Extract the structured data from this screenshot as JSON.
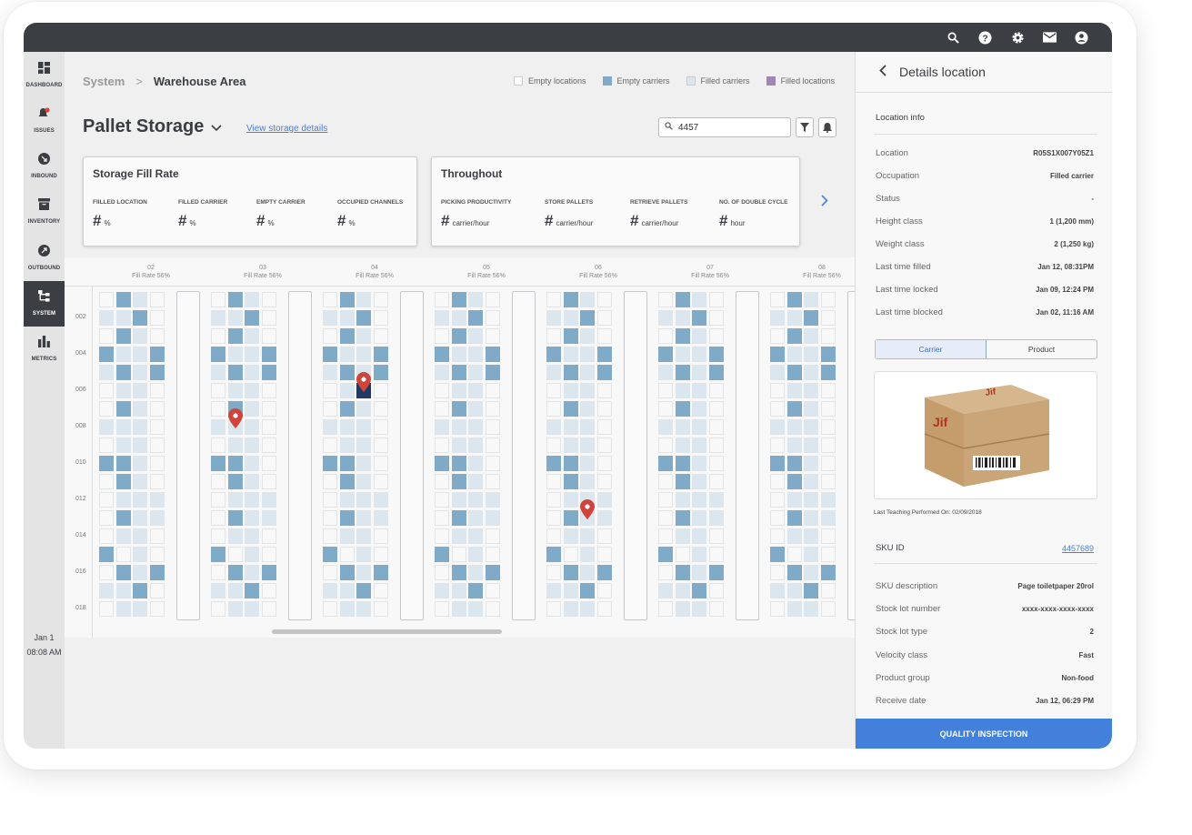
{
  "topbar": {
    "icons": [
      "search-icon",
      "help-icon",
      "gear-icon",
      "mail-icon",
      "account-icon"
    ]
  },
  "sidebar": {
    "items": [
      {
        "label": "DASHBOARD",
        "icon": "dashboard-icon"
      },
      {
        "label": "ISSUES",
        "icon": "bell-alert-icon"
      },
      {
        "label": "INBOUND",
        "icon": "inbound-arrow-icon"
      },
      {
        "label": "INVENTORY",
        "icon": "archive-icon"
      },
      {
        "label": "OUTBOUND",
        "icon": "outbound-arrow-icon"
      },
      {
        "label": "SYSTEM",
        "icon": "hierarchy-icon",
        "active": true
      },
      {
        "label": "METRICS",
        "icon": "bar-chart-icon"
      }
    ],
    "date": "Jan 1",
    "time": "08:08 AM"
  },
  "breadcrumb": {
    "parent": "System",
    "current": "Warehouse Area"
  },
  "legend": [
    {
      "label": "Empty locations",
      "color": "#ffffff"
    },
    {
      "label": "Empty carriers",
      "color": "#7faac8"
    },
    {
      "label": "Filled carriers",
      "color": "#dce6ef"
    },
    {
      "label": "Filled locations",
      "color": "#a086b4"
    }
  ],
  "page": {
    "title": "Pallet Storage",
    "view_link": "View storage details"
  },
  "search": {
    "value": "4457",
    "placeholder": ""
  },
  "fill_card": {
    "title": "Storage Fill Rate",
    "metrics": [
      {
        "label": "FIILLED LOCATION",
        "value": "#",
        "unit": "%"
      },
      {
        "label": "FILLED CARRIER",
        "value": "#",
        "unit": "%"
      },
      {
        "label": "EMPTY CARRIER",
        "value": "#",
        "unit": "%"
      },
      {
        "label": "OCCUPIED CHANNELS",
        "value": "#",
        "unit": "%"
      }
    ]
  },
  "throughput_card": {
    "title": "Throughout",
    "metrics": [
      {
        "label": "PICKING PRODUCTIVITY",
        "value": "#",
        "unit": "carrier/hour"
      },
      {
        "label": "STORE PALLETS",
        "value": "#",
        "unit": "carrier/hour"
      },
      {
        "label": "RETRIEVE PALLETS",
        "value": "#",
        "unit": "carrier/hour"
      },
      {
        "label": "NO. OF DOUBLE CYCLE",
        "value": "#",
        "unit": "hour"
      }
    ]
  },
  "grid": {
    "columns": [
      {
        "id": "02",
        "fill": "Fill Rate 56%"
      },
      {
        "id": "03",
        "fill": "Fill Rate 56%"
      },
      {
        "id": "04",
        "fill": "Fill Rate 56%"
      },
      {
        "id": "05",
        "fill": "Fill Rate 56%"
      },
      {
        "id": "06",
        "fill": "Fill Rate 56%"
      },
      {
        "id": "07",
        "fill": "Fill Rate 56%"
      },
      {
        "id": "08",
        "fill": "Fill Rate 56%"
      }
    ],
    "row_labels": [
      "002",
      "004",
      "006",
      "008",
      "010",
      "012",
      "014",
      "016",
      "018"
    ],
    "pattern": [
      "ECFE",
      "FFCE",
      "ECFE",
      "CFFC",
      "FCFC",
      "EFFE",
      "ECFE",
      "FFFE",
      "EFFE",
      "CCFE",
      "ECFE",
      "EFFF",
      "ECFF",
      "EFFE",
      "CEFE",
      "ECFC",
      "FFCE",
      "EFFE"
    ],
    "pattern_key": {
      "E": "empty location",
      "C": "empty carrier",
      "F": "filled carrier"
    },
    "selected": {
      "column": "04",
      "row": 6,
      "slot": 3,
      "color": "#1f3a63"
    },
    "markers": [
      {
        "column": "03",
        "row": 7,
        "slot": 2
      },
      {
        "column": "04",
        "row": 5,
        "slot": 3
      },
      {
        "column": "06",
        "row": 12,
        "slot": 3
      }
    ],
    "marker_color": "#d0443c"
  },
  "details": {
    "title": "Details location",
    "section": "Location info",
    "fields": [
      {
        "k": "Location",
        "v": "R05S1X007Y05Z1"
      },
      {
        "k": "Occupation",
        "v": "Filled carrier"
      },
      {
        "k": "Status",
        "v": "-"
      },
      {
        "k": "Height class",
        "v": "1 (1,200 mm)"
      },
      {
        "k": "Weight class",
        "v": "2 (1,250 kg)"
      },
      {
        "k": "Last time filled",
        "v": "Jan 12, 08:31PM"
      },
      {
        "k": "Last time locked",
        "v": "Jan 09, 12:24 PM"
      },
      {
        "k": "Last time blocked",
        "v": "Jan 02, 11:16 AM"
      }
    ],
    "tabs": [
      "Carrier",
      "Product"
    ],
    "teaching": "Last Teaching Performed On: 02/09/2018",
    "sku_label": "SKU ID",
    "sku_value": "4457689",
    "sku_fields": [
      {
        "k": "SKU description",
        "v": "Page toiletpaper 20rol"
      },
      {
        "k": "Stock lot number",
        "v": "xxxx-xxxx-xxxx-xxxx"
      },
      {
        "k": "Stock lot type",
        "v": "2"
      },
      {
        "k": "Velocity class",
        "v": "Fast"
      },
      {
        "k": "Product group",
        "v": "Non-food"
      },
      {
        "k": "Receive date",
        "v": "Jan 12, 06:29 PM"
      }
    ],
    "button": "QUALITY INSPECTION"
  },
  "accent": "#4380dc"
}
